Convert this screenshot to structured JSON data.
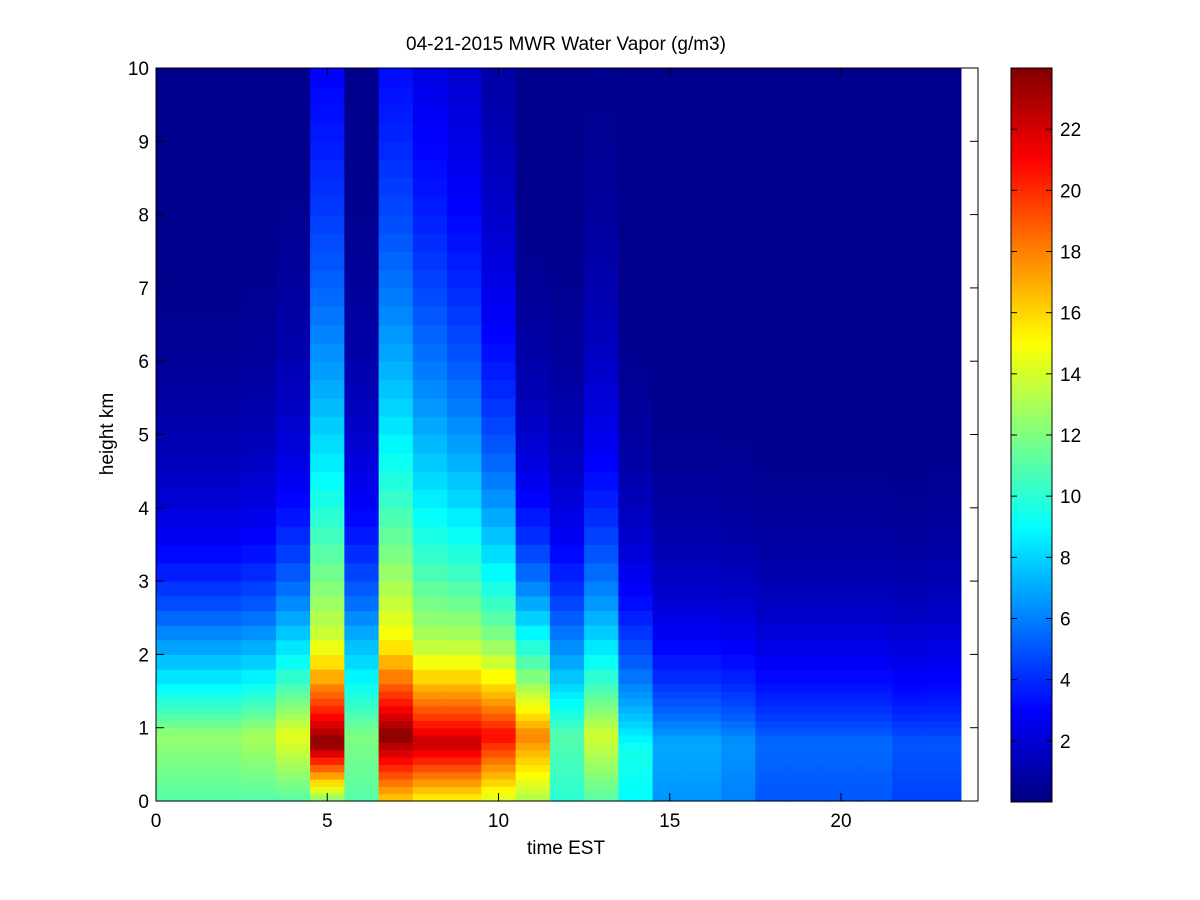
{
  "chart_data": {
    "type": "heatmap",
    "title": "04-21-2015 MWR Water Vapor (g/m3)",
    "xlabel": "time EST",
    "ylabel": "height km",
    "xlim": [
      0,
      24
    ],
    "ylim": [
      0,
      10
    ],
    "xticks": [
      "0",
      "5",
      "10",
      "15",
      "20"
    ],
    "xtick_values": [
      0,
      5,
      10,
      15,
      20
    ],
    "yticks": [
      "0",
      "1",
      "2",
      "3",
      "4",
      "5",
      "6",
      "7",
      "8",
      "9",
      "10"
    ],
    "ytick_values": [
      0,
      1,
      2,
      3,
      4,
      5,
      6,
      7,
      8,
      9,
      10
    ],
    "colorbar": {
      "colormap": "jet",
      "clim": [
        0,
        24
      ],
      "ticks": [
        "2",
        "4",
        "6",
        "8",
        "10",
        "12",
        "14",
        "16",
        "18",
        "20",
        "22"
      ],
      "tick_values": [
        2,
        4,
        6,
        8,
        10,
        12,
        14,
        16,
        18,
        20,
        22
      ]
    },
    "time_hours": [
      0,
      1,
      2,
      3,
      4,
      5,
      6,
      7,
      8,
      9,
      10,
      11,
      12,
      13,
      14,
      15,
      16,
      17,
      18,
      19,
      20,
      21,
      22,
      23
    ],
    "heights_km": [
      0,
      0.1,
      0.2,
      0.3,
      0.4,
      0.5,
      0.6,
      0.7,
      0.8,
      0.9,
      1.0,
      1.1,
      1.2,
      1.3,
      1.4,
      1.5,
      1.6,
      1.8,
      2.0,
      2.2,
      2.4,
      2.6,
      2.8,
      3.0,
      3.25,
      3.5,
      3.75,
      4.0,
      4.25,
      4.5,
      4.75,
      5.0,
      5.25,
      5.5,
      5.75,
      6.0,
      6.25,
      6.5,
      6.75,
      7.0,
      7.25,
      7.5,
      7.75,
      8.0,
      8.25,
      8.5,
      8.75,
      9.0,
      9.25,
      9.5,
      9.75
    ],
    "profile_params": [
      {
        "time": 0,
        "surface": 11,
        "peak": 12.5,
        "peak_height": 0.9,
        "low_scale": 2.0,
        "upper_scale": 1.6
      },
      {
        "time": 1,
        "surface": 11,
        "peak": 12.5,
        "peak_height": 0.9,
        "low_scale": 2.0,
        "upper_scale": 1.6
      },
      {
        "time": 2,
        "surface": 11,
        "peak": 12.5,
        "peak_height": 0.9,
        "low_scale": 2.0,
        "upper_scale": 1.6
      },
      {
        "time": 3,
        "surface": 11,
        "peak": 13,
        "peak_height": 0.9,
        "low_scale": 2.0,
        "upper_scale": 1.7
      },
      {
        "time": 4,
        "surface": 11,
        "peak": 14.5,
        "peak_height": 0.9,
        "low_scale": 2.2,
        "upper_scale": 2.0
      },
      {
        "time": 5,
        "surface": 12,
        "peak": 24,
        "peak_height": 0.8,
        "low_scale": 2.6,
        "upper_scale": 5.0
      },
      {
        "time": 6,
        "surface": 11,
        "peak": 12,
        "peak_height": 0.9,
        "low_scale": 2.6,
        "upper_scale": 2.0
      },
      {
        "time": 7,
        "surface": 16,
        "peak": 24,
        "peak_height": 0.9,
        "low_scale": 2.8,
        "upper_scale": 5.0
      },
      {
        "time": 8,
        "surface": 15,
        "peak": 22.5,
        "peak_height": 0.8,
        "low_scale": 2.6,
        "upper_scale": 4.6
      },
      {
        "time": 9,
        "surface": 15,
        "peak": 22.5,
        "peak_height": 0.8,
        "low_scale": 2.6,
        "upper_scale": 4.0
      },
      {
        "time": 10,
        "surface": 14,
        "peak": 21,
        "peak_height": 0.9,
        "low_scale": 2.4,
        "upper_scale": 3.0
      },
      {
        "time": 11,
        "surface": 13,
        "peak": 18,
        "peak_height": 0.9,
        "low_scale": 2.0,
        "upper_scale": 1.7
      },
      {
        "time": 12,
        "surface": 10,
        "peak": 11,
        "peak_height": 0.9,
        "low_scale": 2.2,
        "upper_scale": 1.8
      },
      {
        "time": 13,
        "surface": 11,
        "peak": 14,
        "peak_height": 0.9,
        "low_scale": 2.4,
        "upper_scale": 2.4
      },
      {
        "time": 14,
        "surface": 9,
        "peak": 9.5,
        "peak_height": 0.7,
        "low_scale": 2.0,
        "upper_scale": 1.6
      },
      {
        "time": 15,
        "surface": 6.5,
        "peak": 7,
        "peak_height": 0.8,
        "low_scale": 1.6,
        "upper_scale": 1.4
      },
      {
        "time": 16,
        "surface": 6.5,
        "peak": 7,
        "peak_height": 0.8,
        "low_scale": 1.6,
        "upper_scale": 1.4
      },
      {
        "time": 17,
        "surface": 6,
        "peak": 6.5,
        "peak_height": 0.8,
        "low_scale": 1.6,
        "upper_scale": 1.4
      },
      {
        "time": 18,
        "surface": 5,
        "peak": 5.5,
        "peak_height": 0.8,
        "low_scale": 1.6,
        "upper_scale": 1.3
      },
      {
        "time": 19,
        "surface": 5,
        "peak": 5.5,
        "peak_height": 0.8,
        "low_scale": 1.6,
        "upper_scale": 1.3
      },
      {
        "time": 20,
        "surface": 5,
        "peak": 5.5,
        "peak_height": 0.8,
        "low_scale": 1.6,
        "upper_scale": 1.3
      },
      {
        "time": 21,
        "surface": 5,
        "peak": 5.5,
        "peak_height": 0.8,
        "low_scale": 1.6,
        "upper_scale": 1.3
      },
      {
        "time": 22,
        "surface": 4.5,
        "peak": 5,
        "peak_height": 0.8,
        "low_scale": 1.6,
        "upper_scale": 1.3
      },
      {
        "time": 23,
        "surface": 4.5,
        "peak": 5,
        "peak_height": 0.8,
        "low_scale": 1.7,
        "upper_scale": 1.4
      }
    ],
    "grid": false
  }
}
